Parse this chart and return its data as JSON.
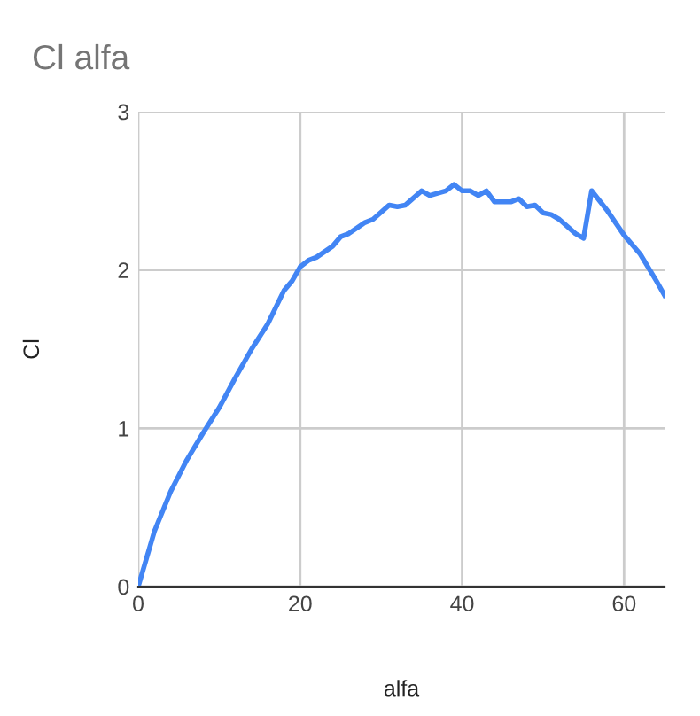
{
  "chart_data": {
    "type": "line",
    "title": "Cl alfa",
    "xlabel": "alfa",
    "ylabel": "Cl",
    "x": [
      0,
      2,
      4,
      6,
      8,
      10,
      12,
      14,
      16,
      18,
      19,
      20,
      21,
      22,
      24,
      25,
      26,
      28,
      29,
      31,
      32,
      33,
      35,
      36,
      38,
      39,
      40,
      41,
      42,
      43,
      44,
      46,
      47,
      48,
      49,
      50,
      51,
      52,
      54,
      55,
      56,
      58,
      60,
      62,
      64,
      65
    ],
    "series": [
      {
        "color": "#4285f4",
        "values": [
          0,
          0.35,
          0.6,
          0.8,
          0.97,
          1.13,
          1.32,
          1.5,
          1.66,
          1.87,
          1.93,
          2.02,
          2.06,
          2.08,
          2.15,
          2.21,
          2.23,
          2.3,
          2.32,
          2.41,
          2.4,
          2.41,
          2.5,
          2.47,
          2.5,
          2.54,
          2.5,
          2.5,
          2.47,
          2.5,
          2.43,
          2.43,
          2.45,
          2.4,
          2.41,
          2.36,
          2.35,
          2.32,
          2.23,
          2.2,
          2.5,
          2.37,
          2.22,
          2.1,
          1.93,
          1.84
        ]
      }
    ],
    "xlim": [
      0,
      65
    ],
    "xticks": [
      0,
      20,
      40,
      60
    ],
    "ylim": [
      0,
      3
    ],
    "yticks": [
      0,
      1,
      2,
      3
    ],
    "grid": true,
    "legend": false
  }
}
